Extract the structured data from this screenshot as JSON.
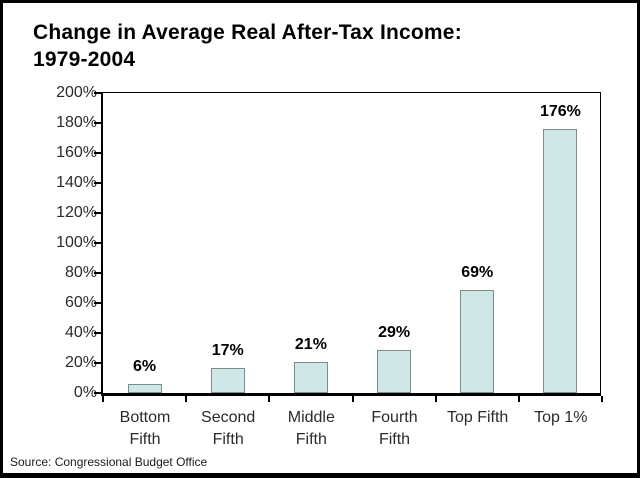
{
  "frame": {
    "title_line1": "Change in Average Real After-Tax Income:",
    "title_line2": "1979-2004",
    "source": "Source: Congressional Budget Office"
  },
  "chart_data": {
    "type": "bar",
    "title": "Change in Average Real After-Tax Income: 1979-2004",
    "categories": [
      "Bottom Fifth",
      "Second Fifth",
      "Middle Fifth",
      "Fourth Fifth",
      "Top Fifth",
      "Top 1%"
    ],
    "category_label_lines": [
      [
        "Bottom",
        "Fifth"
      ],
      [
        "Second",
        "Fifth"
      ],
      [
        "Middle",
        "Fifth"
      ],
      [
        "Fourth",
        "Fifth"
      ],
      [
        "Top Fifth"
      ],
      [
        "Top 1%"
      ]
    ],
    "values": [
      6,
      17,
      21,
      29,
      69,
      176
    ],
    "value_labels": [
      "6%",
      "17%",
      "21%",
      "29%",
      "69%",
      "176%"
    ],
    "xlabel": "",
    "ylabel": "",
    "ylim": [
      0,
      200
    ],
    "ytick_step": 20,
    "ytick_labels": [
      "0%",
      "20%",
      "40%",
      "60%",
      "80%",
      "100%",
      "120%",
      "140%",
      "160%",
      "180%",
      "200%"
    ],
    "grid": false,
    "legend": "none",
    "colors": {
      "bar_fill": "#cfe8e7",
      "bar_border": "#7f8c8c",
      "axis": "#000000",
      "tick_label": "#2b2b2b",
      "value_label": "#000000",
      "title": "#000000"
    },
    "source": "Source: Congressional Budget Office"
  }
}
